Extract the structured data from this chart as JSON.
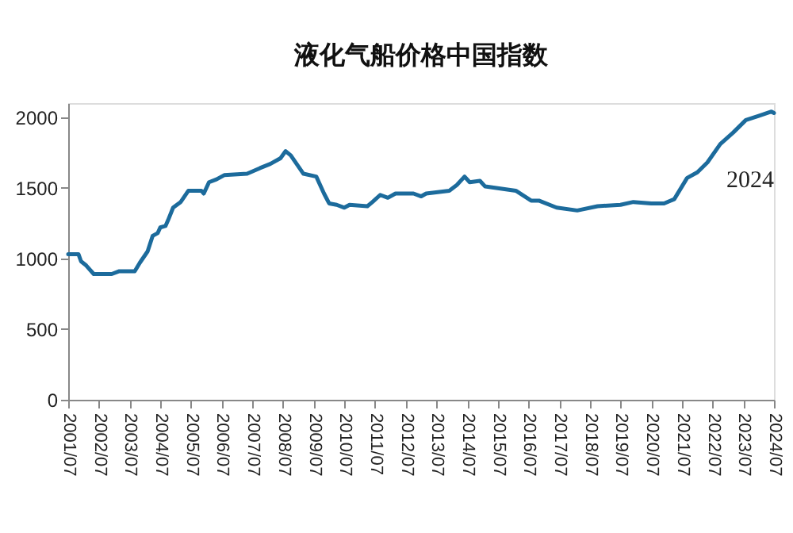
{
  "chart_data": {
    "type": "line",
    "title": "液化气船价格中国指数",
    "x": [
      "2001-07",
      "2001-11",
      "2001-12",
      "2002-02",
      "2002-05",
      "2002-12",
      "2003-03",
      "2003-09",
      "2003-11",
      "2004-02",
      "2004-04",
      "2004-06",
      "2004-07",
      "2004-09",
      "2004-10",
      "2004-12",
      "2005-03",
      "2005-06",
      "2005-11",
      "2005-12",
      "2006-02",
      "2006-05",
      "2006-08",
      "2007-05",
      "2007-10",
      "2008-02",
      "2008-06",
      "2008-08",
      "2008-10",
      "2009-03",
      "2009-08",
      "2009-11",
      "2010-01",
      "2010-04",
      "2010-07",
      "2010-09",
      "2011-04",
      "2011-06",
      "2011-09",
      "2011-12",
      "2012-03",
      "2012-10",
      "2013-01",
      "2013-03",
      "2013-12",
      "2014-03",
      "2014-06",
      "2014-08",
      "2014-12",
      "2015-02",
      "2016-02",
      "2016-08",
      "2016-11",
      "2017-06",
      "2018-02",
      "2018-10",
      "2019-07",
      "2019-12",
      "2020-07",
      "2020-12",
      "2021-04",
      "2021-09",
      "2022-01",
      "2022-05",
      "2022-10",
      "2023-03",
      "2023-08",
      "2024-01",
      "2024-06",
      "2024-07"
    ],
    "series": [
      {
        "color": "#1c6b9c",
        "values": [
          1030,
          1030,
          980,
          950,
          890,
          890,
          910,
          910,
          970,
          1050,
          1160,
          1180,
          1220,
          1230,
          1270,
          1360,
          1400,
          1480,
          1480,
          1460,
          1540,
          1560,
          1590,
          1600,
          1640,
          1670,
          1710,
          1760,
          1730,
          1600,
          1580,
          1460,
          1390,
          1380,
          1360,
          1380,
          1370,
          1400,
          1450,
          1430,
          1460,
          1460,
          1440,
          1460,
          1480,
          1520,
          1580,
          1540,
          1550,
          1510,
          1480,
          1410,
          1410,
          1360,
          1340,
          1370,
          1380,
          1400,
          1390,
          1390,
          1420,
          1570,
          1610,
          1680,
          1810,
          1890,
          1980,
          2010,
          2040,
          2030
        ]
      }
    ],
    "xlim": [
      "2001-07",
      "2024-07"
    ],
    "xticks": [
      {
        "value": "2001-07",
        "label": "2001/07"
      },
      {
        "value": "2002-07",
        "label": "2002/07"
      },
      {
        "value": "2003-07",
        "label": "2003/07"
      },
      {
        "value": "2004-07",
        "label": "2004/07"
      },
      {
        "value": "2005-07",
        "label": "2005/07"
      },
      {
        "value": "2006-07",
        "label": "2006/07"
      },
      {
        "value": "2007-07",
        "label": "2007/07"
      },
      {
        "value": "2008-07",
        "label": "2008/07"
      },
      {
        "value": "2009-07",
        "label": "2009/07"
      },
      {
        "value": "2010-07",
        "label": "2010/07"
      },
      {
        "value": "2011-07",
        "label": "2011/07"
      },
      {
        "value": "2012-07",
        "label": "2012/07"
      },
      {
        "value": "2013-07",
        "label": "2013/07"
      },
      {
        "value": "2014-07",
        "label": "2014/07"
      },
      {
        "value": "2015-07",
        "label": "2015/07"
      },
      {
        "value": "2016-07",
        "label": "2016/07"
      },
      {
        "value": "2017-07",
        "label": "2017/07"
      },
      {
        "value": "2018-07",
        "label": "2018/07"
      },
      {
        "value": "2019-07",
        "label": "2019/07"
      },
      {
        "value": "2020-07",
        "label": "2020/07"
      },
      {
        "value": "2021-07",
        "label": "2021/07"
      },
      {
        "value": "2022-07",
        "label": "2022/07"
      },
      {
        "value": "2023-07",
        "label": "2023/07"
      },
      {
        "value": "2024-07",
        "label": "2024/07"
      }
    ],
    "ylim": [
      0,
      2100
    ],
    "yticks": [
      0,
      500,
      1000,
      1500,
      2000
    ],
    "annotations": [
      "2024"
    ],
    "grid": false,
    "marker": "none",
    "line_style": "solid"
  }
}
